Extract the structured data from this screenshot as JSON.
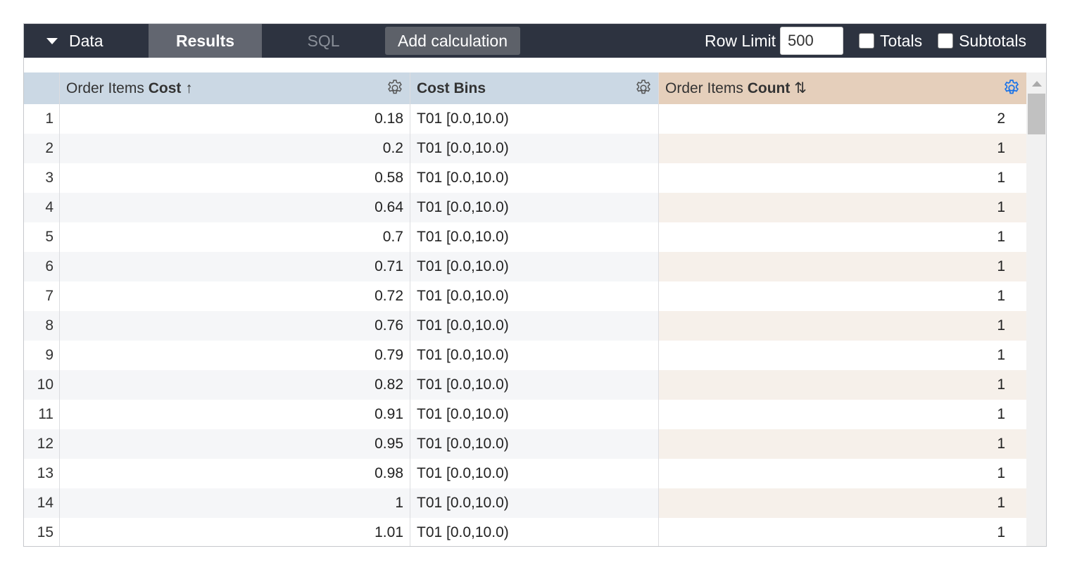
{
  "toolbar": {
    "data_label": "Data",
    "results_label": "Results",
    "sql_label": "SQL",
    "add_calc_label": "Add calculation",
    "row_limit_label": "Row Limit",
    "row_limit_value": "500",
    "totals_label": "Totals",
    "subtotals_label": "Subtotals"
  },
  "columns": [
    {
      "prefix": "Order Items ",
      "bold": "Cost",
      "sort": "↑"
    },
    {
      "prefix": "",
      "bold": "Cost Bins",
      "sort": ""
    },
    {
      "prefix": "Order Items ",
      "bold": "Count",
      "sort": "⇅"
    }
  ],
  "colors": {
    "toolbar": "#2d3340",
    "dimension_header": "#cbd8e4",
    "measure_header": "#e5cfbb",
    "gear_active": "#1a73e8"
  },
  "rows": [
    [
      "1",
      "0.18",
      "T01 [0.0,10.0)",
      "2"
    ],
    [
      "2",
      "0.2",
      "T01 [0.0,10.0)",
      "1"
    ],
    [
      "3",
      "0.58",
      "T01 [0.0,10.0)",
      "1"
    ],
    [
      "4",
      "0.64",
      "T01 [0.0,10.0)",
      "1"
    ],
    [
      "5",
      "0.7",
      "T01 [0.0,10.0)",
      "1"
    ],
    [
      "6",
      "0.71",
      "T01 [0.0,10.0)",
      "1"
    ],
    [
      "7",
      "0.72",
      "T01 [0.0,10.0)",
      "1"
    ],
    [
      "8",
      "0.76",
      "T01 [0.0,10.0)",
      "1"
    ],
    [
      "9",
      "0.79",
      "T01 [0.0,10.0)",
      "1"
    ],
    [
      "10",
      "0.82",
      "T01 [0.0,10.0)",
      "1"
    ],
    [
      "11",
      "0.91",
      "T01 [0.0,10.0)",
      "1"
    ],
    [
      "12",
      "0.95",
      "T01 [0.0,10.0)",
      "1"
    ],
    [
      "13",
      "0.98",
      "T01 [0.0,10.0)",
      "1"
    ],
    [
      "14",
      "1",
      "T01 [0.0,10.0)",
      "1"
    ],
    [
      "15",
      "1.01",
      "T01 [0.0,10.0)",
      "1"
    ]
  ]
}
